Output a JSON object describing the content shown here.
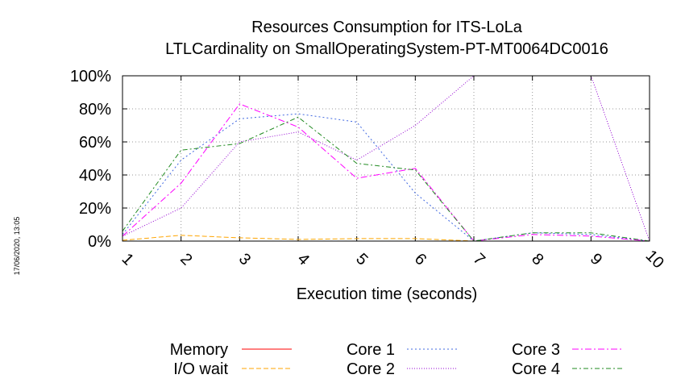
{
  "chart_data": {
    "type": "line",
    "title": [
      "Resources Consumption for ITS-LoLa",
      "LTLCardinality on SmallOperatingSystem-PT-MT0064DC0016"
    ],
    "xlabel": "Execution time (seconds)",
    "ylabel": "",
    "x": [
      1,
      2,
      3,
      4,
      5,
      6,
      7,
      8,
      9,
      10
    ],
    "x_ticks": [
      "1",
      "2",
      "3",
      "4",
      "5",
      "6",
      "7",
      "8",
      "9",
      "10"
    ],
    "y_ticks": [
      "0%",
      "20%",
      "40%",
      "60%",
      "80%",
      "100%"
    ],
    "ylim": [
      0,
      100
    ],
    "xlim": [
      1,
      10
    ],
    "grid": true,
    "legend_position": "bottom",
    "timestamp": "17/06/2020, 13:05",
    "series": [
      {
        "name": "Memory",
        "color": "#ff0000",
        "dash": "none",
        "values": [
          0,
          0,
          0,
          0,
          0,
          0,
          0,
          0,
          0,
          0
        ]
      },
      {
        "name": "I/O wait",
        "color": "#ffa500",
        "dash": "6,3",
        "values": [
          0.5,
          3.5,
          2,
          1,
          1.5,
          1.5,
          0,
          0,
          0,
          0
        ]
      },
      {
        "name": "Core 1",
        "color": "#4169e1",
        "dash": "2,3",
        "values": [
          4,
          49,
          74,
          77,
          72,
          29,
          0,
          5,
          4,
          0
        ]
      },
      {
        "name": "Core 2",
        "color": "#9400d3",
        "dash": "1,2",
        "values": [
          3,
          20,
          60,
          66,
          49,
          70,
          100,
          100,
          100,
          0
        ]
      },
      {
        "name": "Core 3",
        "color": "#ff00ff",
        "dash": "8,3,2,3",
        "values": [
          3,
          35,
          83,
          69,
          38,
          44,
          0,
          4,
          3,
          0
        ]
      },
      {
        "name": "Core 4",
        "color": "#228b22",
        "dash": "6,3,2,3",
        "values": [
          6,
          55,
          59,
          75,
          47,
          43,
          0,
          5,
          5,
          0
        ]
      }
    ]
  }
}
